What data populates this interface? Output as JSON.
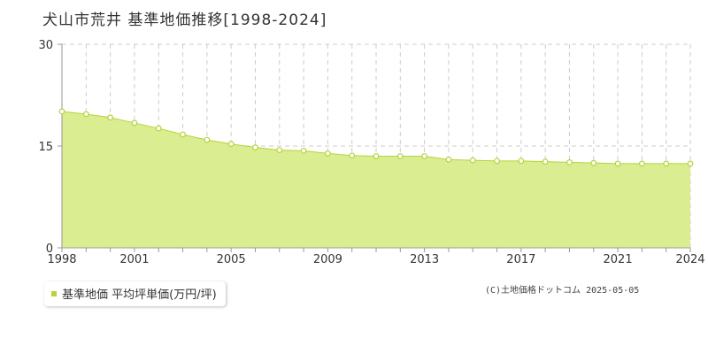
{
  "title": "犬山市荒井 基準地価推移[1998-2024]",
  "legend": {
    "label": "基準地価 平均坪単価(万円/坪)"
  },
  "copyright": "(C)土地価格ドットコム 2025-05-05",
  "colors": {
    "fill": "#dbed91",
    "line": "#b5d33a",
    "marker_fill": "#ffffff",
    "grid": "#cccccc",
    "axis": "#999999"
  },
  "chart_data": {
    "type": "area",
    "x": [
      1998,
      1999,
      2000,
      2001,
      2002,
      2003,
      2004,
      2005,
      2006,
      2007,
      2008,
      2009,
      2010,
      2011,
      2012,
      2013,
      2014,
      2015,
      2016,
      2017,
      2018,
      2019,
      2020,
      2021,
      2022,
      2023,
      2024
    ],
    "series": [
      {
        "values": [
          20.1,
          19.7,
          19.2,
          18.4,
          17.6,
          16.7,
          15.9,
          15.3,
          14.8,
          14.4,
          14.3,
          13.9,
          13.6,
          13.5,
          13.5,
          13.5,
          13.0,
          12.9,
          12.8,
          12.8,
          12.7,
          12.6,
          12.5,
          12.4,
          12.4,
          12.4,
          12.4
        ]
      }
    ],
    "ylim": [
      0,
      30
    ],
    "y_ticks": [
      "0",
      "15",
      "30"
    ],
    "x_ticks": [
      "1998",
      "2001",
      "2005",
      "2009",
      "2013",
      "2017",
      "2021",
      "2024"
    ],
    "grid": true
  }
}
